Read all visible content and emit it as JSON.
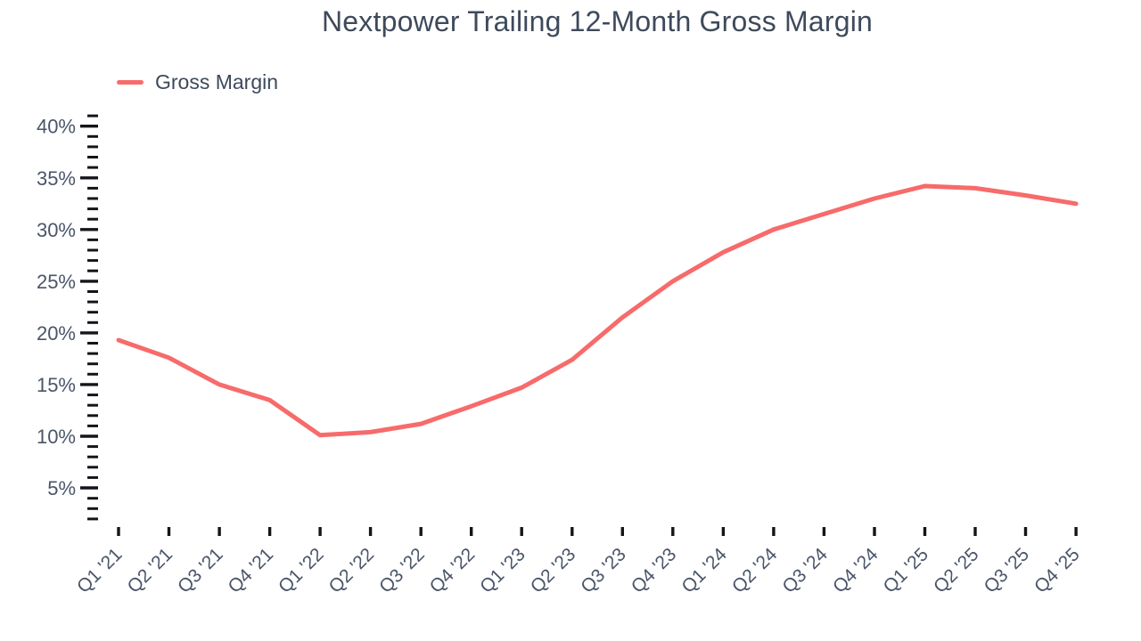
{
  "colors": {
    "line": "#F76B6B",
    "tick": "#131519",
    "axis_label": "#4A5569",
    "title_text": "#3E4A5B",
    "background": "#FFFFFF"
  },
  "chart_data": {
    "type": "line",
    "title": "Nextpower Trailing 12-Month Gross Margin",
    "xlabel": "",
    "ylabel": "",
    "grid": false,
    "legend_position": "top-left",
    "legend": [
      {
        "label": "Gross Margin",
        "color": "#F76B6B"
      }
    ],
    "categories": [
      "Q1 '21",
      "Q2 '21",
      "Q3 '21",
      "Q4 '21",
      "Q1 '22",
      "Q2 '22",
      "Q3 '22",
      "Q4 '22",
      "Q1 '23",
      "Q2 '23",
      "Q3 '23",
      "Q4 '23",
      "Q1 '24",
      "Q2 '24",
      "Q3 '24",
      "Q4 '24",
      "Q1 '25",
      "Q2 '25",
      "Q3 '25",
      "Q4 '25"
    ],
    "series": [
      {
        "name": "Gross Margin",
        "color": "#F76B6B",
        "values": [
          19.3,
          17.6,
          15.0,
          13.5,
          10.1,
          10.4,
          11.2,
          12.9,
          14.7,
          17.4,
          21.5,
          25.0,
          27.8,
          30.0,
          31.5,
          33.0,
          34.2,
          34.0,
          33.3,
          32.5
        ]
      }
    ],
    "y_axis": {
      "unit": "%",
      "tick_values": [
        5,
        10,
        15,
        20,
        25,
        30,
        35,
        40
      ],
      "tick_labels": [
        "5%",
        "10%",
        "15%",
        "20%",
        "25%",
        "30%",
        "35%",
        "40%"
      ],
      "minor_tick_step": 1
    },
    "ylim": [
      2,
      41
    ]
  }
}
